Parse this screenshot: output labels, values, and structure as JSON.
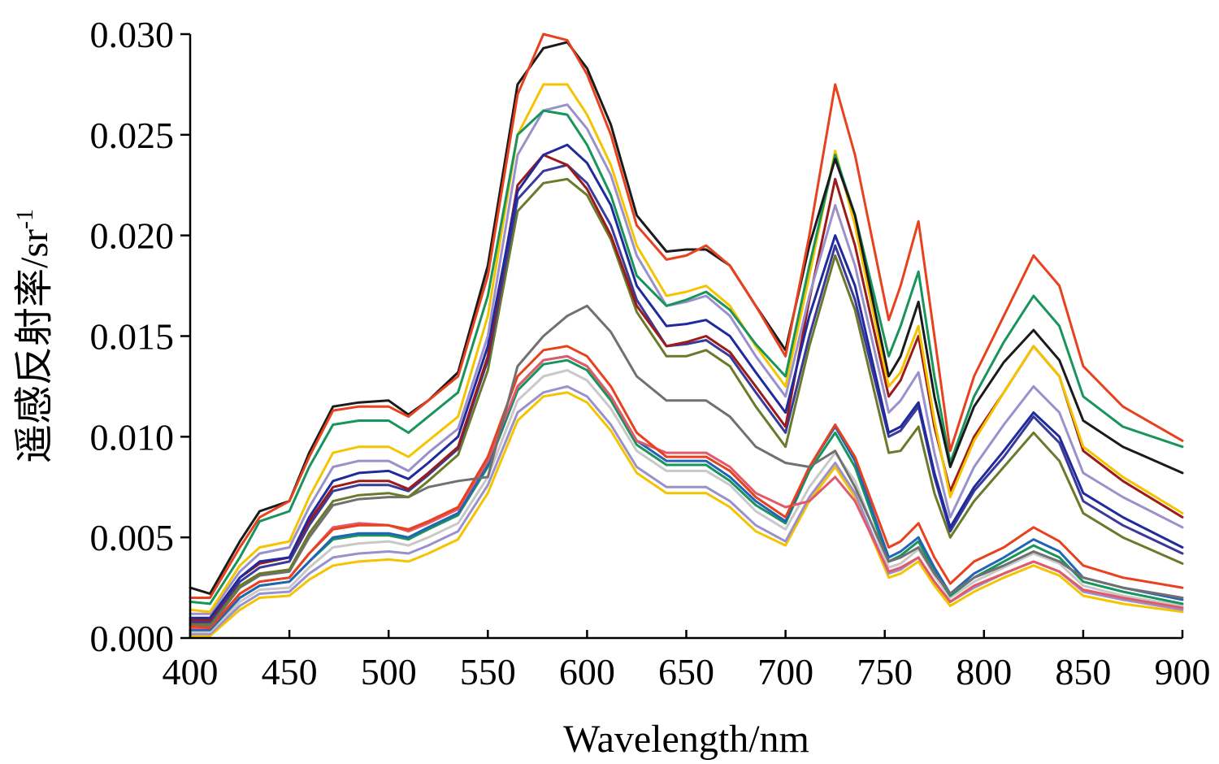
{
  "chart_data": {
    "type": "line",
    "xlabel": "Wavelength/nm",
    "ylabel": {
      "main": "遥感反射率/sr",
      "superscript": "-1"
    },
    "xlim": [
      400,
      900
    ],
    "ylim": [
      0,
      0.03
    ],
    "x_ticks": [
      "400",
      "450",
      "500",
      "550",
      "600",
      "650",
      "700",
      "750",
      "800",
      "850",
      "900"
    ],
    "y_ticks": [
      "0.000",
      "0.005",
      "0.010",
      "0.015",
      "0.020",
      "0.025",
      "0.030"
    ],
    "grid": false,
    "legend": "none",
    "x": [
      400,
      410,
      425,
      435,
      450,
      460,
      472,
      485,
      500,
      510,
      520,
      535,
      550,
      565,
      578,
      590,
      600,
      612,
      625,
      640,
      650,
      660,
      672,
      685,
      700,
      712,
      725,
      735,
      752,
      758,
      767,
      775,
      783,
      795,
      810,
      825,
      838,
      850,
      870,
      900
    ],
    "series": [
      {
        "color": "#e8411e",
        "values": [
          0.002,
          0.002,
          0.0045,
          0.006,
          0.0068,
          0.009,
          0.0113,
          0.0115,
          0.0115,
          0.011,
          0.0118,
          0.013,
          0.018,
          0.027,
          0.03,
          0.0297,
          0.028,
          0.025,
          0.0205,
          0.0188,
          0.019,
          0.0195,
          0.0185,
          0.0165,
          0.014,
          0.02,
          0.0275,
          0.024,
          0.0158,
          0.0175,
          0.0207,
          0.015,
          0.0093,
          0.013,
          0.016,
          0.019,
          0.0175,
          0.0135,
          0.0115,
          0.0098
        ]
      },
      {
        "color": "#1a1a1a",
        "values": [
          0.0025,
          0.0022,
          0.0048,
          0.0063,
          0.0068,
          0.0092,
          0.0115,
          0.0117,
          0.0118,
          0.0111,
          0.0118,
          0.0132,
          0.0185,
          0.0275,
          0.0293,
          0.0296,
          0.0283,
          0.0255,
          0.021,
          0.0192,
          0.0193,
          0.0193,
          0.0185,
          0.0165,
          0.0143,
          0.0195,
          0.0238,
          0.021,
          0.013,
          0.014,
          0.0167,
          0.012,
          0.0085,
          0.0115,
          0.0137,
          0.0153,
          0.0138,
          0.0108,
          0.0095,
          0.0082
        ]
      },
      {
        "color": "#18945c",
        "values": [
          0.0018,
          0.0017,
          0.004,
          0.0058,
          0.0063,
          0.0085,
          0.0106,
          0.0108,
          0.0108,
          0.0102,
          0.011,
          0.0122,
          0.017,
          0.025,
          0.0262,
          0.026,
          0.0245,
          0.022,
          0.018,
          0.0165,
          0.0168,
          0.0172,
          0.0163,
          0.0146,
          0.013,
          0.0185,
          0.024,
          0.021,
          0.014,
          0.0155,
          0.0182,
          0.013,
          0.0087,
          0.012,
          0.0147,
          0.017,
          0.0155,
          0.012,
          0.0105,
          0.0095
        ]
      },
      {
        "color": "#f5c400",
        "values": [
          0.0014,
          0.0013,
          0.0036,
          0.0045,
          0.0048,
          0.007,
          0.0092,
          0.0095,
          0.0095,
          0.009,
          0.0098,
          0.011,
          0.016,
          0.025,
          0.0275,
          0.0275,
          0.026,
          0.0235,
          0.0195,
          0.017,
          0.0172,
          0.0175,
          0.0165,
          0.0145,
          0.0125,
          0.018,
          0.0242,
          0.0205,
          0.0125,
          0.0132,
          0.0155,
          0.0108,
          0.007,
          0.0098,
          0.0122,
          0.0145,
          0.013,
          0.0095,
          0.008,
          0.0062
        ]
      },
      {
        "color": "#9a90cc",
        "values": [
          0.0012,
          0.0012,
          0.0033,
          0.0042,
          0.0045,
          0.0065,
          0.0085,
          0.0088,
          0.0088,
          0.0083,
          0.0092,
          0.0104,
          0.015,
          0.024,
          0.0262,
          0.0265,
          0.0253,
          0.023,
          0.019,
          0.0165,
          0.0167,
          0.017,
          0.016,
          0.014,
          0.012,
          0.017,
          0.0215,
          0.0185,
          0.0112,
          0.0118,
          0.0132,
          0.0092,
          0.006,
          0.0085,
          0.0106,
          0.0125,
          0.0112,
          0.0082,
          0.007,
          0.0055
        ]
      },
      {
        "color": "#1f2a9c",
        "values": [
          0.001,
          0.001,
          0.003,
          0.0038,
          0.004,
          0.006,
          0.0078,
          0.0082,
          0.0083,
          0.0079,
          0.0087,
          0.01,
          0.0145,
          0.0222,
          0.024,
          0.0245,
          0.0236,
          0.0215,
          0.0175,
          0.0155,
          0.0156,
          0.0158,
          0.015,
          0.0132,
          0.0112,
          0.016,
          0.02,
          0.0175,
          0.0102,
          0.0105,
          0.0117,
          0.0082,
          0.0055,
          0.0075,
          0.0093,
          0.0112,
          0.01,
          0.0072,
          0.006,
          0.0045
        ]
      },
      {
        "color": "#9b1b1b",
        "values": [
          0.0009,
          0.0009,
          0.003,
          0.0037,
          0.004,
          0.0058,
          0.0075,
          0.0078,
          0.0078,
          0.0074,
          0.0082,
          0.0095,
          0.014,
          0.0225,
          0.024,
          0.0235,
          0.0223,
          0.02,
          0.0165,
          0.0145,
          0.0147,
          0.015,
          0.0142,
          0.0125,
          0.0105,
          0.0168,
          0.0228,
          0.0195,
          0.012,
          0.0128,
          0.015,
          0.0105,
          0.0073,
          0.01,
          0.0122,
          0.0145,
          0.013,
          0.0093,
          0.0078,
          0.006
        ]
      },
      {
        "color": "#3a3a9a",
        "values": [
          0.0008,
          0.0008,
          0.0028,
          0.0035,
          0.0038,
          0.0056,
          0.0073,
          0.0076,
          0.0076,
          0.0073,
          0.0081,
          0.0094,
          0.0138,
          0.0218,
          0.0232,
          0.0235,
          0.0226,
          0.0205,
          0.0168,
          0.0145,
          0.0146,
          0.0148,
          0.014,
          0.0122,
          0.0102,
          0.015,
          0.0195,
          0.0168,
          0.01,
          0.0103,
          0.0115,
          0.008,
          0.0053,
          0.0073,
          0.009,
          0.011,
          0.0097,
          0.0068,
          0.0056,
          0.0042
        ]
      },
      {
        "color": "#6b7a2a",
        "values": [
          0.0007,
          0.0007,
          0.0026,
          0.0032,
          0.0034,
          0.0052,
          0.0068,
          0.0071,
          0.0072,
          0.007,
          0.0078,
          0.0091,
          0.0133,
          0.0212,
          0.0226,
          0.0228,
          0.022,
          0.0198,
          0.0162,
          0.014,
          0.014,
          0.0143,
          0.0135,
          0.0115,
          0.0095,
          0.0145,
          0.019,
          0.0163,
          0.0092,
          0.0093,
          0.0105,
          0.0072,
          0.005,
          0.0068,
          0.0085,
          0.0102,
          0.0088,
          0.0062,
          0.005,
          0.0037
        ]
      },
      {
        "color": "#707070",
        "values": [
          0.0007,
          0.0006,
          0.0025,
          0.0031,
          0.0033,
          0.005,
          0.0066,
          0.0069,
          0.007,
          0.007,
          0.0075,
          0.0078,
          0.008,
          0.0135,
          0.015,
          0.016,
          0.0165,
          0.0152,
          0.013,
          0.0118,
          0.0118,
          0.0118,
          0.011,
          0.0095,
          0.0087,
          0.0085,
          0.0093,
          0.0075,
          0.0038,
          0.004,
          0.0045,
          0.0032,
          0.0022,
          0.003,
          0.0036,
          0.0043,
          0.0038,
          0.003,
          0.0025,
          0.002
        ]
      },
      {
        "color": "#e8411e",
        "values": [
          0.0006,
          0.0005,
          0.0022,
          0.0028,
          0.003,
          0.0042,
          0.0054,
          0.0056,
          0.0056,
          0.0054,
          0.0058,
          0.0065,
          0.009,
          0.013,
          0.0143,
          0.0145,
          0.014,
          0.0125,
          0.0102,
          0.009,
          0.009,
          0.009,
          0.0083,
          0.007,
          0.006,
          0.0085,
          0.0106,
          0.009,
          0.0045,
          0.0048,
          0.0057,
          0.004,
          0.0027,
          0.0038,
          0.0045,
          0.0055,
          0.0048,
          0.0036,
          0.003,
          0.0025
        ]
      },
      {
        "color": "#e25a6a",
        "values": [
          0.0005,
          0.0005,
          0.0022,
          0.0028,
          0.003,
          0.0042,
          0.0055,
          0.0057,
          0.0056,
          0.0053,
          0.0057,
          0.0064,
          0.0088,
          0.0125,
          0.0138,
          0.014,
          0.0135,
          0.012,
          0.0098,
          0.0092,
          0.0092,
          0.0092,
          0.0085,
          0.0072,
          0.0065,
          0.0068,
          0.008,
          0.0068,
          0.0033,
          0.0035,
          0.004,
          0.0028,
          0.0018,
          0.0026,
          0.0032,
          0.0038,
          0.0033,
          0.0024,
          0.002,
          0.0015
        ]
      },
      {
        "color": "#2464b5",
        "values": [
          0.0004,
          0.0004,
          0.002,
          0.0026,
          0.0028,
          0.0038,
          0.005,
          0.0052,
          0.0052,
          0.005,
          0.0055,
          0.0062,
          0.0086,
          0.0125,
          0.0138,
          0.014,
          0.0135,
          0.012,
          0.0098,
          0.0088,
          0.0088,
          0.0088,
          0.008,
          0.0068,
          0.0058,
          0.0085,
          0.0105,
          0.0088,
          0.004,
          0.0043,
          0.005,
          0.0035,
          0.0022,
          0.0032,
          0.004,
          0.0049,
          0.0043,
          0.003,
          0.0025,
          0.0019
        ]
      },
      {
        "color": "#18945c",
        "values": [
          0.0004,
          0.0004,
          0.002,
          0.0026,
          0.0028,
          0.0038,
          0.0049,
          0.0051,
          0.0051,
          0.0049,
          0.0054,
          0.0061,
          0.0085,
          0.0123,
          0.0136,
          0.0138,
          0.0133,
          0.0118,
          0.0096,
          0.0086,
          0.0086,
          0.0086,
          0.0078,
          0.0066,
          0.0057,
          0.0083,
          0.0102,
          0.0085,
          0.0038,
          0.0041,
          0.0048,
          0.0033,
          0.0021,
          0.003,
          0.0038,
          0.0046,
          0.004,
          0.0028,
          0.0023,
          0.0017
        ]
      },
      {
        "color": "#c8c8c8",
        "values": [
          0.0003,
          0.0003,
          0.0018,
          0.0024,
          0.0025,
          0.0035,
          0.0045,
          0.0047,
          0.0048,
          0.0046,
          0.005,
          0.0057,
          0.008,
          0.0118,
          0.013,
          0.0133,
          0.0128,
          0.0114,
          0.0093,
          0.0083,
          0.0083,
          0.0083,
          0.0076,
          0.0063,
          0.0054,
          0.0075,
          0.0092,
          0.0078,
          0.0035,
          0.0037,
          0.0044,
          0.0031,
          0.002,
          0.0028,
          0.0035,
          0.0042,
          0.0037,
          0.0026,
          0.0021,
          0.0016
        ]
      },
      {
        "color": "#9a90cc",
        "values": [
          0.0002,
          0.0002,
          0.0016,
          0.0022,
          0.0023,
          0.0032,
          0.004,
          0.0042,
          0.0043,
          0.0042,
          0.0046,
          0.0053,
          0.0076,
          0.0112,
          0.0122,
          0.0125,
          0.012,
          0.0106,
          0.0085,
          0.0075,
          0.0075,
          0.0075,
          0.0068,
          0.0056,
          0.0048,
          0.007,
          0.0087,
          0.0072,
          0.0032,
          0.0034,
          0.004,
          0.0028,
          0.0018,
          0.0025,
          0.0032,
          0.0038,
          0.0033,
          0.0023,
          0.0019,
          0.0014
        ]
      },
      {
        "color": "#f5c400",
        "values": [
          0.0001,
          0.0001,
          0.0014,
          0.002,
          0.0021,
          0.0029,
          0.0036,
          0.0038,
          0.0039,
          0.0038,
          0.0042,
          0.0049,
          0.0072,
          0.0108,
          0.012,
          0.0122,
          0.0117,
          0.0103,
          0.0082,
          0.0072,
          0.0072,
          0.0072,
          0.0065,
          0.0053,
          0.0046,
          0.0068,
          0.0085,
          0.007,
          0.003,
          0.0032,
          0.0038,
          0.0026,
          0.0016,
          0.0023,
          0.003,
          0.0036,
          0.0031,
          0.0021,
          0.0017,
          0.0013
        ]
      }
    ]
  }
}
